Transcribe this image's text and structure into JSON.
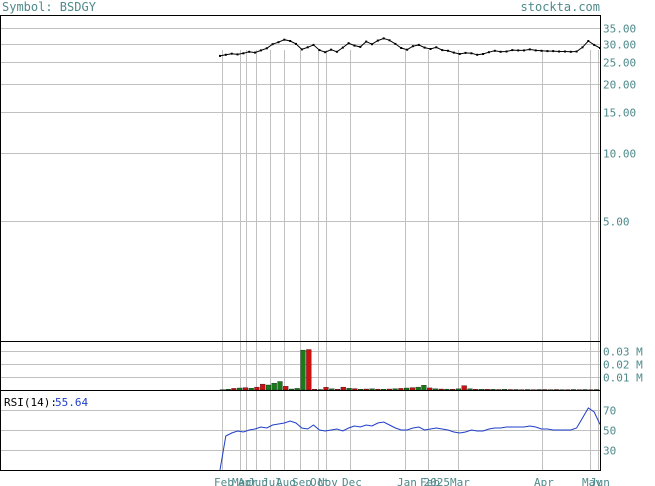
{
  "header": {
    "symbol_text": "Symbol: BSDGY",
    "brand": "stockta.com"
  },
  "colors": {
    "axis_text": "#4f8a8b",
    "grid": "#c0c0c0",
    "frame": "#000000",
    "rsi_line": "#1f3fc8",
    "volume_up": "#1a7a1a",
    "volume_down": "#cc1111",
    "price": "#000000"
  },
  "chart_data": [
    {
      "type": "line",
      "panel": "price",
      "yscale": "log",
      "yticks": [
        "35.00",
        "30.00",
        "25.00",
        "20.00",
        "15.00",
        "10.00",
        "5.00"
      ],
      "ylim": [
        1.5,
        40
      ],
      "x_labels": [
        "Feb",
        "Mar",
        "Apr",
        "Jun",
        "Jul",
        "Aug",
        "Sep",
        "Oct",
        "Nov",
        "Dec",
        "Jan 2025",
        "Feb",
        "Mar",
        "Apr",
        "May",
        "Jun"
      ],
      "series": [
        {
          "values": [
            26.5,
            26.8,
            27.1,
            26.9,
            27.2,
            27.6,
            27.4,
            28.0,
            28.6,
            29.8,
            30.4,
            31.2,
            30.8,
            29.9,
            28.3,
            28.9,
            29.6,
            28.1,
            27.5,
            28.2,
            27.6,
            28.8,
            30.1,
            29.4,
            29.0,
            30.6,
            29.8,
            30.9,
            31.6,
            31.0,
            29.9,
            28.7,
            28.2,
            29.2,
            29.6,
            28.8,
            28.4,
            28.9,
            28.1,
            27.9,
            27.4,
            27.0,
            27.3,
            27.2,
            26.8,
            27.0,
            27.5,
            27.9,
            27.6,
            27.7,
            28.1,
            28.0,
            28.0,
            28.3,
            28.0,
            27.9,
            27.8,
            27.8,
            27.7,
            27.7,
            27.6,
            27.7,
            28.9,
            30.8,
            29.6,
            28.7
          ]
        }
      ]
    },
    {
      "type": "bar",
      "panel": "volume",
      "yticks": [
        "0.03 M",
        "0.02 M",
        "0.01 M"
      ],
      "ylim": [
        0,
        0.0375
      ],
      "series": [
        {
          "values": [
            0.0003,
            0.0006,
            0.0012,
            0.0015,
            0.0018,
            0.0014,
            0.0022,
            0.0045,
            0.0038,
            0.0052,
            0.0065,
            0.0028,
            0.0008,
            0.0012,
            0.0305,
            0.031,
            0.0006,
            0.0004,
            0.0021,
            0.0009,
            0.0006,
            0.0022,
            0.0014,
            0.0011,
            0.0006,
            0.0008,
            0.0009,
            0.0007,
            0.0006,
            0.0008,
            0.001,
            0.0012,
            0.0015,
            0.0018,
            0.0022,
            0.0037,
            0.0016,
            0.001,
            0.0008,
            0.0007,
            0.0006,
            0.0009,
            0.0034,
            0.001,
            0.0006,
            0.0005,
            0.0006,
            0.0005,
            0.0004,
            0.0005,
            0.0004,
            0.0004,
            0.0003,
            0.0004,
            0.0003,
            0.0004,
            0.0004,
            0.0003,
            0.0004,
            0.0003,
            0.0003,
            0.0004,
            0.0003,
            0.0004,
            0.0003,
            0.0004
          ],
          "colors": [
            "up",
            "up",
            "down",
            "up",
            "down",
            "up",
            "down",
            "down",
            "up",
            "up",
            "up",
            "down",
            "up",
            "up",
            "up",
            "down",
            "down",
            "up",
            "down",
            "up",
            "down",
            "down",
            "up",
            "down",
            "up",
            "down",
            "up",
            "down",
            "up",
            "down",
            "up",
            "down",
            "up",
            "down",
            "up",
            "up",
            "down",
            "up",
            "down",
            "up",
            "down",
            "up",
            "down",
            "up",
            "down",
            "up",
            "down",
            "up",
            "down",
            "up",
            "down",
            "up",
            "down",
            "up",
            "down",
            "up",
            "down",
            "up",
            "down",
            "up",
            "down",
            "up",
            "down",
            "up",
            "down",
            "up"
          ]
        }
      ]
    },
    {
      "type": "line",
      "panel": "rsi",
      "title": "RSI(14):",
      "title_value": "55.64",
      "yticks": [
        "70",
        "50",
        "30"
      ],
      "ylim": [
        10,
        90
      ],
      "series": [
        {
          "values": [
            10,
            44,
            47,
            49,
            48,
            50,
            51,
            53,
            52,
            55,
            56,
            57,
            59,
            57,
            52,
            51,
            55,
            50,
            49,
            50,
            51,
            49,
            52,
            54,
            53,
            55,
            54,
            57,
            58,
            55,
            52,
            50,
            50,
            52,
            53,
            50,
            51,
            52,
            51,
            50,
            48,
            47,
            48,
            50,
            49,
            49,
            51,
            52,
            52,
            53,
            53,
            53,
            53,
            54,
            53,
            51,
            51,
            50,
            50,
            50,
            50,
            52,
            62,
            72,
            68,
            55.64
          ]
        }
      ]
    }
  ]
}
